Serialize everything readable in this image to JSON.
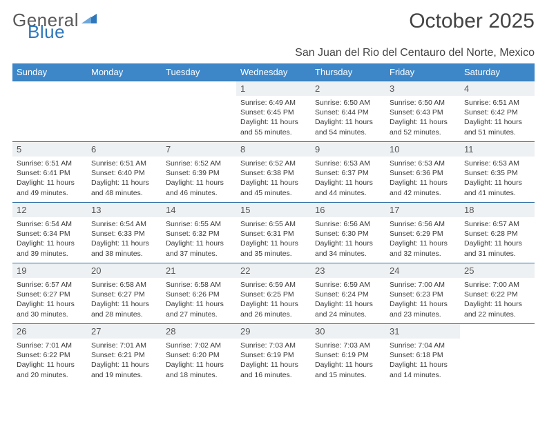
{
  "logo": {
    "word1": "General",
    "word2": "Blue"
  },
  "title": "October 2025",
  "subtitle": "San Juan del Rio del Centauro del Norte, Mexico",
  "colors": {
    "header_bg": "#3d87c9",
    "header_text": "#ffffff",
    "daynum_bg": "#eef1f3",
    "row_border": "#2e6da4",
    "logo_blue": "#2e77bb",
    "body_text": "#3a3a3a"
  },
  "weekdays": [
    "Sunday",
    "Monday",
    "Tuesday",
    "Wednesday",
    "Thursday",
    "Friday",
    "Saturday"
  ],
  "weeks": [
    [
      null,
      null,
      null,
      {
        "n": "1",
        "sr": "6:49 AM",
        "ss": "6:45 PM",
        "dl": "11 hours and 55 minutes."
      },
      {
        "n": "2",
        "sr": "6:50 AM",
        "ss": "6:44 PM",
        "dl": "11 hours and 54 minutes."
      },
      {
        "n": "3",
        "sr": "6:50 AM",
        "ss": "6:43 PM",
        "dl": "11 hours and 52 minutes."
      },
      {
        "n": "4",
        "sr": "6:51 AM",
        "ss": "6:42 PM",
        "dl": "11 hours and 51 minutes."
      }
    ],
    [
      {
        "n": "5",
        "sr": "6:51 AM",
        "ss": "6:41 PM",
        "dl": "11 hours and 49 minutes."
      },
      {
        "n": "6",
        "sr": "6:51 AM",
        "ss": "6:40 PM",
        "dl": "11 hours and 48 minutes."
      },
      {
        "n": "7",
        "sr": "6:52 AM",
        "ss": "6:39 PM",
        "dl": "11 hours and 46 minutes."
      },
      {
        "n": "8",
        "sr": "6:52 AM",
        "ss": "6:38 PM",
        "dl": "11 hours and 45 minutes."
      },
      {
        "n": "9",
        "sr": "6:53 AM",
        "ss": "6:37 PM",
        "dl": "11 hours and 44 minutes."
      },
      {
        "n": "10",
        "sr": "6:53 AM",
        "ss": "6:36 PM",
        "dl": "11 hours and 42 minutes."
      },
      {
        "n": "11",
        "sr": "6:53 AM",
        "ss": "6:35 PM",
        "dl": "11 hours and 41 minutes."
      }
    ],
    [
      {
        "n": "12",
        "sr": "6:54 AM",
        "ss": "6:34 PM",
        "dl": "11 hours and 39 minutes."
      },
      {
        "n": "13",
        "sr": "6:54 AM",
        "ss": "6:33 PM",
        "dl": "11 hours and 38 minutes."
      },
      {
        "n": "14",
        "sr": "6:55 AM",
        "ss": "6:32 PM",
        "dl": "11 hours and 37 minutes."
      },
      {
        "n": "15",
        "sr": "6:55 AM",
        "ss": "6:31 PM",
        "dl": "11 hours and 35 minutes."
      },
      {
        "n": "16",
        "sr": "6:56 AM",
        "ss": "6:30 PM",
        "dl": "11 hours and 34 minutes."
      },
      {
        "n": "17",
        "sr": "6:56 AM",
        "ss": "6:29 PM",
        "dl": "11 hours and 32 minutes."
      },
      {
        "n": "18",
        "sr": "6:57 AM",
        "ss": "6:28 PM",
        "dl": "11 hours and 31 minutes."
      }
    ],
    [
      {
        "n": "19",
        "sr": "6:57 AM",
        "ss": "6:27 PM",
        "dl": "11 hours and 30 minutes."
      },
      {
        "n": "20",
        "sr": "6:58 AM",
        "ss": "6:27 PM",
        "dl": "11 hours and 28 minutes."
      },
      {
        "n": "21",
        "sr": "6:58 AM",
        "ss": "6:26 PM",
        "dl": "11 hours and 27 minutes."
      },
      {
        "n": "22",
        "sr": "6:59 AM",
        "ss": "6:25 PM",
        "dl": "11 hours and 26 minutes."
      },
      {
        "n": "23",
        "sr": "6:59 AM",
        "ss": "6:24 PM",
        "dl": "11 hours and 24 minutes."
      },
      {
        "n": "24",
        "sr": "7:00 AM",
        "ss": "6:23 PM",
        "dl": "11 hours and 23 minutes."
      },
      {
        "n": "25",
        "sr": "7:00 AM",
        "ss": "6:22 PM",
        "dl": "11 hours and 22 minutes."
      }
    ],
    [
      {
        "n": "26",
        "sr": "7:01 AM",
        "ss": "6:22 PM",
        "dl": "11 hours and 20 minutes."
      },
      {
        "n": "27",
        "sr": "7:01 AM",
        "ss": "6:21 PM",
        "dl": "11 hours and 19 minutes."
      },
      {
        "n": "28",
        "sr": "7:02 AM",
        "ss": "6:20 PM",
        "dl": "11 hours and 18 minutes."
      },
      {
        "n": "29",
        "sr": "7:03 AM",
        "ss": "6:19 PM",
        "dl": "11 hours and 16 minutes."
      },
      {
        "n": "30",
        "sr": "7:03 AM",
        "ss": "6:19 PM",
        "dl": "11 hours and 15 minutes."
      },
      {
        "n": "31",
        "sr": "7:04 AM",
        "ss": "6:18 PM",
        "dl": "11 hours and 14 minutes."
      },
      null
    ]
  ],
  "labels": {
    "sunrise": "Sunrise:",
    "sunset": "Sunset:",
    "daylight": "Daylight:"
  }
}
